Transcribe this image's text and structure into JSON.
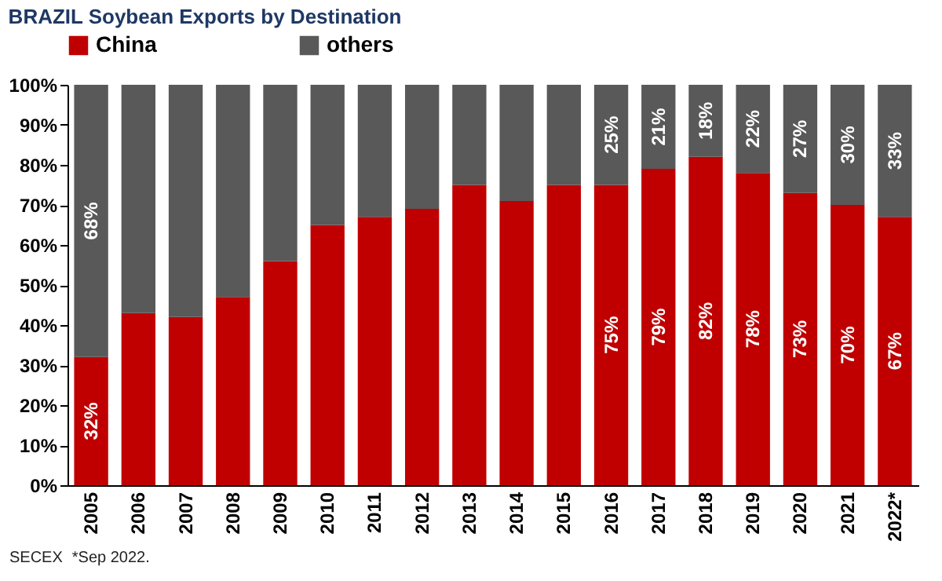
{
  "chart_data": {
    "type": "bar",
    "title": "BRAZIL  Soybean Exports by Destination",
    "stacked": true,
    "legend": "top",
    "grid": false,
    "categories": [
      "2005",
      "2006",
      "2007",
      "2008",
      "2009",
      "2010",
      "2011",
      "2012",
      "2013",
      "2014",
      "2015",
      "2016",
      "2017",
      "2018",
      "2019",
      "2020",
      "2021",
      "2022*"
    ],
    "series": [
      {
        "name": "China",
        "color": "#c00000",
        "values": [
          32,
          43,
          42,
          47,
          56,
          65,
          67,
          69,
          75,
          71,
          75,
          75,
          79,
          82,
          78,
          73,
          70,
          67
        ],
        "value_labels": [
          "32%",
          null,
          null,
          null,
          null,
          null,
          null,
          null,
          null,
          null,
          null,
          "75%",
          "79%",
          "82%",
          "78%",
          "73%",
          "70%",
          "67%"
        ]
      },
      {
        "name": "others",
        "color": "#595959",
        "values": [
          68,
          57,
          58,
          53,
          44,
          35,
          33,
          31,
          25,
          29,
          25,
          25,
          21,
          18,
          22,
          27,
          30,
          33
        ],
        "value_labels": [
          "68%",
          null,
          null,
          null,
          null,
          null,
          null,
          null,
          null,
          null,
          null,
          "25%",
          "21%",
          "18%",
          "22%",
          "27%",
          "30%",
          "33%"
        ]
      }
    ],
    "ylim": [
      0,
      100
    ],
    "yticks": [
      {
        "value": 0,
        "label": "0%"
      },
      {
        "value": 10,
        "label": "10%"
      },
      {
        "value": 20,
        "label": "20%"
      },
      {
        "value": 30,
        "label": "30%"
      },
      {
        "value": 40,
        "label": "40%"
      },
      {
        "value": 50,
        "label": "50%"
      },
      {
        "value": 60,
        "label": "60%"
      },
      {
        "value": 70,
        "label": "70%"
      },
      {
        "value": 80,
        "label": "80%"
      },
      {
        "value": 90,
        "label": "90%"
      },
      {
        "value": 100,
        "label": "100%"
      }
    ],
    "annotations": [
      "SECEX",
      "*Sep 2022."
    ]
  }
}
